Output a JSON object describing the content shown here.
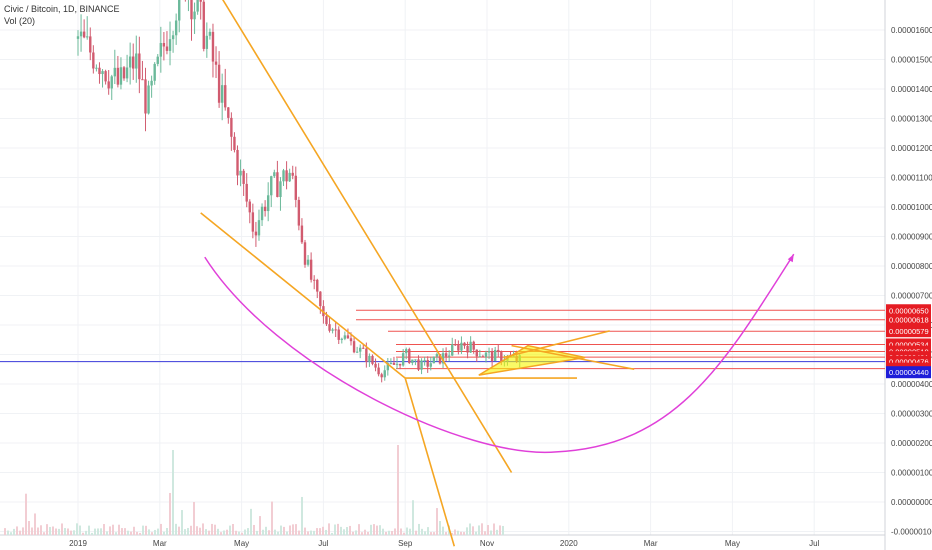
{
  "header": {
    "title": "Civic / Bitcoin, 1D, BINANCE",
    "volume": "Vol (20)"
  },
  "colors": {
    "up": "#6bb99a",
    "down": "#d15b6f",
    "trend": "#f5a623",
    "curve": "#e040d9",
    "level": "#ef5350",
    "current": "#3a3ad9",
    "triangle_fill": "#f7f700",
    "price_red": "#e51c23",
    "price_blue": "#1e1ed9"
  },
  "chart_data": {
    "type": "candlestick",
    "title": "Civic / Bitcoin, 1D, BINANCE",
    "xlabel": "",
    "ylabel": "",
    "x_ticks": [
      "2019",
      "Mar",
      "May",
      "Jul",
      "Sep",
      "Nov",
      "2020",
      "Mar",
      "May",
      "Jul"
    ],
    "y_ticks": [
      "0.00001600",
      "0.00001500",
      "0.00001400",
      "0.00001300",
      "0.00001200",
      "0.00001100",
      "0.00001000",
      "0.00000900",
      "0.00000800",
      "0.00000700",
      "0.00000600",
      "0.00000500",
      "0.00000400",
      "0.00000300",
      "0.00000200",
      "0.00000100",
      "0.00000000",
      "-0.00000100"
    ],
    "ylim": [
      -1.05e-06,
      1.7e-05
    ],
    "price_labels": [
      {
        "text": "0.00000650",
        "value": 6.5e-06,
        "style": "red"
      },
      {
        "text": "0.00000618",
        "value": 6.18e-06,
        "style": "red"
      },
      {
        "text": "0.00000579",
        "value": 5.79e-06,
        "style": "red"
      },
      {
        "text": "0.00000534",
        "value": 5.34e-06,
        "style": "red"
      },
      {
        "text": "0.00000510",
        "value": 5.1e-06,
        "style": "red"
      },
      {
        "text": "0.00000491",
        "value": 4.91e-06,
        "style": "red"
      },
      {
        "text": "0.00000476",
        "value": 4.76e-06,
        "style": "red"
      },
      {
        "text": "0.00000452",
        "value": 4.52e-06,
        "style": "red"
      },
      {
        "text": "0.00000440",
        "value": 4.4e-06,
        "style": "blue"
      }
    ],
    "current_price": 4.76e-06,
    "series": [
      {
        "name": "Price",
        "points": [
          {
            "month": 0.0,
            "price": 1.57e-05
          },
          {
            "month": 0.5,
            "price": 1.5e-05
          },
          {
            "month": 1.0,
            "price": 1.41e-05
          },
          {
            "month": 1.4,
            "price": 1.5e-05
          },
          {
            "month": 1.7,
            "price": 1.34e-05
          },
          {
            "month": 2.2,
            "price": 1.6e-05
          },
          {
            "month": 2.6,
            "price": 1.78e-05
          },
          {
            "month": 3.2,
            "price": 1.55e-05
          },
          {
            "month": 3.8,
            "price": 1.2e-05
          },
          {
            "month": 4.3,
            "price": 9.2e-06
          },
          {
            "month": 4.7,
            "price": 1.06e-05
          },
          {
            "month": 5.2,
            "price": 1.12e-05
          },
          {
            "month": 5.6,
            "price": 8e-06
          },
          {
            "month": 6.0,
            "price": 6.2e-06
          },
          {
            "month": 6.5,
            "price": 5.6e-06
          },
          {
            "month": 7.0,
            "price": 5e-06
          },
          {
            "month": 7.4,
            "price": 4.4e-06
          },
          {
            "month": 7.8,
            "price": 4.7e-06
          },
          {
            "month": 8.0,
            "price": 5e-06
          },
          {
            "month": 8.4,
            "price": 4.6e-06
          },
          {
            "month": 8.9,
            "price": 4.9e-06
          },
          {
            "month": 9.4,
            "price": 5.4e-06
          },
          {
            "month": 9.9,
            "price": 5e-06
          },
          {
            "month": 10.4,
            "price": 4.9e-06
          },
          {
            "month": 10.8,
            "price": 4.8e-06
          }
        ]
      }
    ],
    "trendlines": [
      {
        "from": [
          3.2,
          1.78e-05
        ],
        "to": [
          10.6,
          1e-06
        ]
      },
      {
        "from": [
          3.0,
          9.8e-06
        ],
        "to": [
          8.0,
          4.2e-06
        ]
      },
      {
        "from": [
          8.0,
          4.2e-06
        ],
        "to": [
          12.2,
          4.2e-06
        ]
      },
      {
        "from": [
          8.0,
          4.2e-06
        ],
        "to": [
          9.2,
          -1.5e-06
        ]
      },
      {
        "from": [
          10.4,
          4.9e-06
        ],
        "to": [
          13.0,
          5.8e-06
        ]
      },
      {
        "from": [
          10.6,
          5.3e-06
        ],
        "to": [
          13.6,
          4.5e-06
        ]
      }
    ],
    "triangle": [
      [
        9.8,
        4.3e-06
      ],
      [
        11.0,
        5.3e-06
      ],
      [
        12.4,
        4.9e-06
      ]
    ],
    "curve": {
      "from": [
        3.1,
        8.3e-06
      ],
      "bottom": [
        11.7,
        1.7e-06
      ],
      "to": [
        17.5,
        8.4e-06
      ]
    },
    "legend": "none",
    "grid": true
  }
}
